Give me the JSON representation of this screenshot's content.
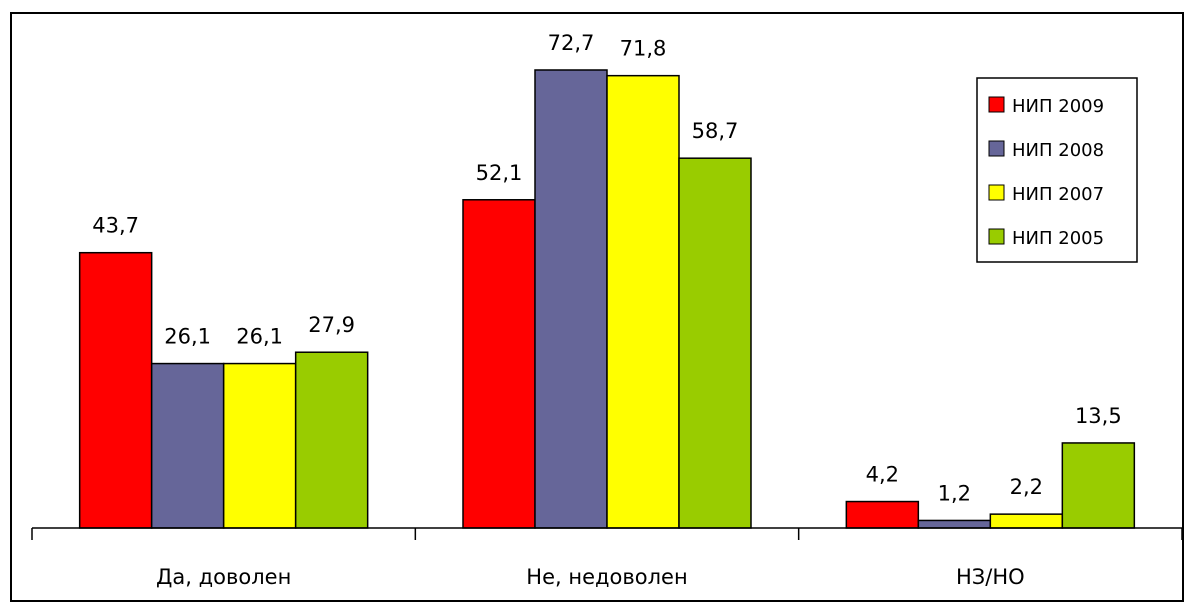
{
  "chart_data": {
    "type": "bar",
    "categories": [
      "Да, доволен",
      "Не, недоволен",
      "НЗ/НО"
    ],
    "series": [
      {
        "name": "НИП 2009",
        "color": "#ff0000",
        "values": [
          43.7,
          52.1,
          4.2
        ],
        "labels": [
          "43,7",
          "52,1",
          "4,2"
        ]
      },
      {
        "name": "НИП 2008",
        "color": "#666699",
        "values": [
          26.1,
          72.7,
          1.2
        ],
        "labels": [
          "26,1",
          "72,7",
          "1,2"
        ]
      },
      {
        "name": "НИП 2007",
        "color": "#ffff00",
        "values": [
          26.1,
          71.8,
          2.2
        ],
        "labels": [
          "26,1",
          "71,8",
          "2,2"
        ]
      },
      {
        "name": "НИП 2005",
        "color": "#99cc00",
        "values": [
          27.9,
          58.7,
          13.5
        ],
        "labels": [
          "27,9",
          "58,7",
          "13,5"
        ]
      }
    ],
    "ylim": [
      0,
      75
    ],
    "grid": false,
    "legend": "top-right",
    "title": "",
    "xlabel": "",
    "ylabel": ""
  }
}
